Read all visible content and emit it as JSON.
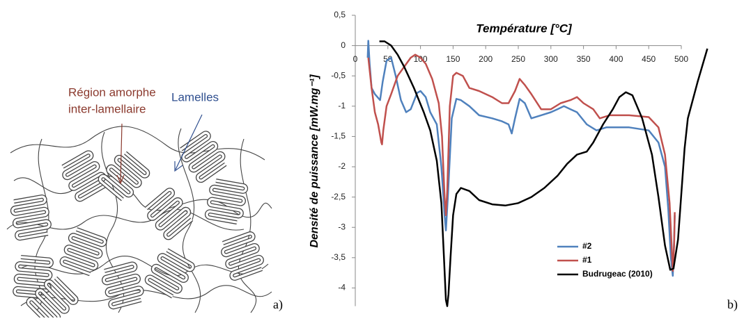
{
  "diagram": {
    "label_amorphous": [
      "Région amorphe",
      "inter-lamellaire"
    ],
    "label_lamellae": "Lamelles",
    "panel_label": "a)"
  },
  "chart_data": {
    "type": "line",
    "title": "Température [°C]",
    "y_label": "Densité de puissance [mW.mg⁻¹]",
    "panel_label": "b)",
    "xlim": [
      0,
      500
    ],
    "xticks": [
      0,
      50,
      100,
      150,
      200,
      250,
      300,
      350,
      400,
      450,
      500
    ],
    "ylim": [
      -4.3,
      0.5
    ],
    "yticks": [
      {
        "value": 0.5,
        "label": "0,5"
      },
      0,
      {
        "value": -0.5,
        "label": "-0,5"
      },
      -1,
      {
        "value": -1.5,
        "label": "-1,5"
      },
      -2,
      {
        "value": -2.5,
        "label": "-2,5"
      },
      -3,
      {
        "value": -3.5,
        "label": "-3,5"
      },
      -4
    ],
    "legend": "lower center",
    "series": [
      {
        "name": "#2",
        "color": "#4f81bd",
        "x": [
          19,
          20,
          22,
          25,
          30,
          38,
          42,
          48,
          55,
          62,
          70,
          78,
          85,
          95,
          100,
          108,
          115,
          125,
          132,
          137,
          139,
          142,
          148,
          155,
          162,
          175,
          190,
          210,
          225,
          235,
          240,
          245,
          252,
          260,
          270,
          285,
          300,
          310,
          320,
          330,
          340,
          355,
          370,
          385,
          420,
          450,
          465,
          475,
          480,
          484,
          487,
          489,
          490
        ],
        "values": [
          -0.2,
          0.08,
          -0.3,
          -0.7,
          -0.8,
          -0.9,
          -0.6,
          -0.25,
          -0.2,
          -0.5,
          -0.9,
          -1.1,
          -1.05,
          -0.78,
          -0.75,
          -0.85,
          -1.1,
          -1.3,
          -2.0,
          -2.8,
          -3.05,
          -2.5,
          -1.2,
          -0.88,
          -0.9,
          -1.0,
          -1.15,
          -1.2,
          -1.25,
          -1.3,
          -1.45,
          -1.2,
          -0.88,
          -0.95,
          -1.2,
          -1.15,
          -1.1,
          -1.05,
          -1.0,
          -1.05,
          -1.1,
          -1.3,
          -1.4,
          -1.35,
          -1.35,
          -1.4,
          -1.6,
          -2.0,
          -2.7,
          -3.5,
          -3.8,
          -3.2,
          -2.8
        ]
      },
      {
        "name": "#1",
        "color": "#c0504d",
        "x": [
          20,
          25,
          30,
          35,
          40,
          41,
          43,
          48,
          55,
          65,
          75,
          85,
          92,
          100,
          108,
          118,
          128,
          133,
          137,
          139,
          141,
          145,
          150,
          155,
          165,
          175,
          190,
          210,
          225,
          235,
          245,
          252,
          260,
          270,
          285,
          300,
          315,
          330,
          340,
          350,
          365,
          375,
          390,
          420,
          450,
          465,
          475,
          482,
          486,
          487,
          489,
          490
        ],
        "values": [
          -0.2,
          -0.7,
          -1.1,
          -1.3,
          -1.6,
          -1.63,
          -1.4,
          -1.0,
          -0.8,
          -0.5,
          -0.35,
          -0.2,
          -0.15,
          -0.2,
          -0.3,
          -0.55,
          -0.95,
          -1.5,
          -2.5,
          -2.8,
          -2.4,
          -1.0,
          -0.5,
          -0.45,
          -0.5,
          -0.7,
          -0.75,
          -0.85,
          -0.95,
          -0.95,
          -0.75,
          -0.55,
          -0.65,
          -0.8,
          -1.05,
          -1.05,
          -0.95,
          -0.9,
          -0.85,
          -0.95,
          -1.05,
          -1.2,
          -1.15,
          -1.15,
          -1.18,
          -1.35,
          -1.8,
          -2.6,
          -3.5,
          -3.72,
          -3.3,
          -2.75
        ]
      },
      {
        "name": "Budrugeac (2010)",
        "color": "#000000",
        "x": [
          37,
          45,
          55,
          65,
          75,
          90,
          105,
          115,
          125,
          132,
          136,
          139,
          141,
          143,
          146,
          150,
          155,
          162,
          175,
          190,
          210,
          230,
          250,
          270,
          290,
          310,
          325,
          340,
          355,
          365,
          380,
          395,
          405,
          415,
          425,
          440,
          455,
          465,
          475,
          483,
          488,
          495,
          505,
          510,
          525,
          540
        ],
        "values": [
          0.07,
          0.07,
          0.0,
          -0.15,
          -0.35,
          -0.7,
          -1.1,
          -1.4,
          -1.9,
          -2.6,
          -3.5,
          -4.2,
          -4.3,
          -4.1,
          -3.5,
          -2.8,
          -2.45,
          -2.35,
          -2.4,
          -2.55,
          -2.62,
          -2.64,
          -2.6,
          -2.5,
          -2.35,
          -2.15,
          -1.95,
          -1.8,
          -1.75,
          -1.6,
          -1.3,
          -1.05,
          -0.85,
          -0.77,
          -0.82,
          -1.2,
          -1.8,
          -2.5,
          -3.3,
          -3.7,
          -3.68,
          -3.2,
          -1.7,
          -1.2,
          -0.6,
          -0.05
        ]
      }
    ]
  }
}
